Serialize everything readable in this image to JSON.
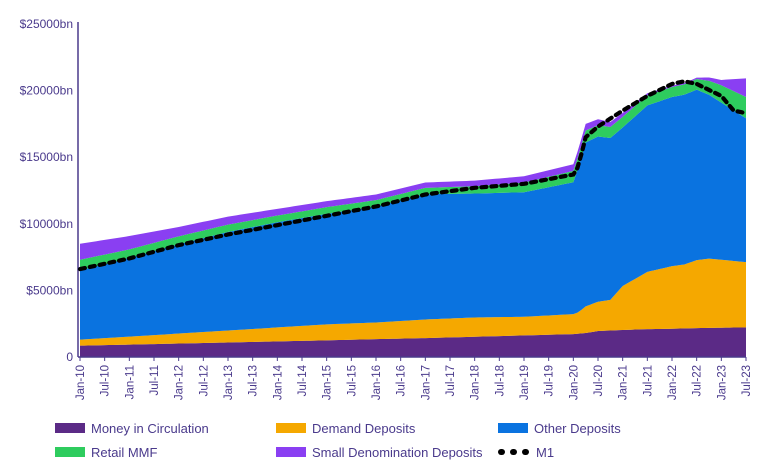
{
  "chart_data": {
    "type": "area",
    "title": "",
    "xlabel": "",
    "ylabel": "",
    "ylim": [
      0,
      25000
    ],
    "y_ticks": [
      "0",
      "$5000bn",
      "$10000bn",
      "$15000bn",
      "$20000bn",
      "$25000bn"
    ],
    "y_tick_values": [
      0,
      5000,
      10000,
      15000,
      20000,
      25000
    ],
    "x_ticks": [
      "Jan-10",
      "Jul-10",
      "Jan-11",
      "Jul-11",
      "Jan-12",
      "Jul-12",
      "Jan-13",
      "Jul-13",
      "Jan-14",
      "Jul-14",
      "Jan-15",
      "Jul-15",
      "Jan-16",
      "Jul-16",
      "Jan-17",
      "Jul-17",
      "Jan-18",
      "Jul-18",
      "Jan-19",
      "Jul-19",
      "Jan-20",
      "Jul-20",
      "Jan-21",
      "Jul-21",
      "Jan-22",
      "Jul-22",
      "Jan-23",
      "Jul-23"
    ],
    "colors": {
      "money": "#5b2a86",
      "demand": "#f5a800",
      "other": "#0a73e0",
      "mmf": "#2ecc5e",
      "small": "#8a3ff2",
      "m1": "#000000",
      "axis": "#4a3a8c"
    },
    "series": [
      {
        "key": "money",
        "name": "Money in Circulation",
        "kind": "area",
        "x": [
          2010.0,
          2011.0,
          2012.0,
          2013.0,
          2014.0,
          2015.0,
          2016.0,
          2017.0,
          2018.0,
          2019.0,
          2020.0,
          2020.25,
          2020.5,
          2021.0,
          2021.5,
          2022.0,
          2022.5,
          2023.0,
          2023.5
        ],
        "values": [
          850,
          930,
          1010,
          1090,
          1170,
          1250,
          1340,
          1420,
          1520,
          1620,
          1720,
          1800,
          1950,
          2030,
          2090,
          2120,
          2170,
          2200,
          2220
        ]
      },
      {
        "key": "demand",
        "name": "Demand Deposits",
        "kind": "area",
        "x": [
          2010.0,
          2011.0,
          2012.0,
          2013.0,
          2014.0,
          2015.0,
          2016.0,
          2017.0,
          2018.0,
          2019.0,
          2020.0,
          2020.1,
          2020.25,
          2020.5,
          2020.75,
          2021.0,
          2021.25,
          2021.5,
          2021.75,
          2022.0,
          2022.25,
          2022.5,
          2022.75,
          2023.0,
          2023.25,
          2023.5
        ],
        "values": [
          450,
          600,
          750,
          900,
          1050,
          1200,
          1250,
          1400,
          1450,
          1400,
          1500,
          1600,
          2000,
          2200,
          2300,
          3300,
          3800,
          4300,
          4500,
          4700,
          4800,
          5100,
          5200,
          5100,
          5000,
          4900
        ]
      },
      {
        "key": "other",
        "name": "Other Deposits",
        "kind": "area",
        "x": [
          2010.0,
          2011.0,
          2012.0,
          2013.0,
          2014.0,
          2015.0,
          2016.0,
          2017.0,
          2018.0,
          2019.0,
          2020.0,
          2020.25,
          2020.5,
          2021.0,
          2021.5,
          2022.0,
          2022.5,
          2023.0,
          2023.5
        ],
        "values": [
          5200,
          5900,
          6700,
          7400,
          7900,
          8300,
          8700,
          9400,
          9300,
          9350,
          9900,
          12300,
          12400,
          11900,
          12500,
          12700,
          12800,
          11800,
          10800
        ]
      },
      {
        "key": "mmf",
        "name": "Retail MMF",
        "kind": "area",
        "x": [
          2010.0,
          2011.0,
          2012.0,
          2013.0,
          2014.0,
          2015.0,
          2016.0,
          2017.0,
          2018.0,
          2019.0,
          2020.0,
          2020.25,
          2020.5,
          2021.0,
          2021.5,
          2022.0,
          2022.5,
          2023.0,
          2023.5
        ],
        "values": [
          800,
          650,
          600,
          550,
          500,
          500,
          490,
          480,
          550,
          720,
          850,
          900,
          850,
          800,
          750,
          750,
          800,
          1300,
          1600
        ]
      },
      {
        "key": "small",
        "name": "Small Denomination Deposits",
        "kind": "area",
        "x": [
          2010.0,
          2011.0,
          2012.0,
          2013.0,
          2014.0,
          2015.0,
          2016.0,
          2017.0,
          2018.0,
          2019.0,
          2020.0,
          2020.25,
          2020.5,
          2021.0,
          2021.5,
          2022.0,
          2022.5,
          2023.0,
          2023.5
        ],
        "values": [
          1200,
          1000,
          700,
          600,
          500,
          450,
          420,
          400,
          420,
          480,
          500,
          500,
          450,
          300,
          160,
          100,
          100,
          400,
          1400
        ]
      },
      {
        "key": "m1",
        "name": "M1",
        "kind": "line",
        "x": [
          2010.0,
          2011.0,
          2012.0,
          2013.0,
          2014.0,
          2015.0,
          2016.0,
          2017.0,
          2018.0,
          2019.0,
          2020.0,
          2020.1,
          2020.25,
          2020.5,
          2021.0,
          2021.5,
          2022.0,
          2022.25,
          2022.5,
          2023.0,
          2023.25,
          2023.5
        ],
        "values": [
          6600,
          7400,
          8400,
          9200,
          9900,
          10600,
          11300,
          12200,
          12700,
          13000,
          13700,
          14300,
          16500,
          17300,
          18500,
          19600,
          20500,
          20700,
          20500,
          19600,
          18500,
          18300
        ]
      }
    ]
  }
}
